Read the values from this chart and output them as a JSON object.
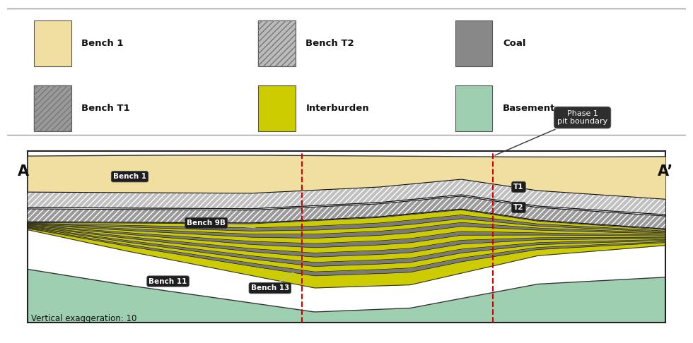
{
  "fig_width": 9.8,
  "fig_height": 4.86,
  "bg_color": "#ffffff",
  "colors": {
    "bench1": "#f0dfa0",
    "bench_t1_fill": "#999999",
    "bench_t2_fill": "#bbbbbb",
    "coal": "#7a7a7a",
    "interburden": "#cccc00",
    "basement": "#9ecfb0",
    "outline": "#222222"
  },
  "legend_items": [
    {
      "label": "Bench 1",
      "color": "#f0dfa0",
      "hatch": "",
      "row": 0,
      "col": 0
    },
    {
      "label": "Bench T2",
      "color": "#bbbbbb",
      "hatch": "////",
      "row": 0,
      "col": 1
    },
    {
      "label": "Coal",
      "color": "#888888",
      "hatch": "",
      "row": 0,
      "col": 2
    },
    {
      "label": "Bench T1",
      "color": "#999999",
      "hatch": "////",
      "row": 1,
      "col": 0
    },
    {
      "label": "Interburden",
      "color": "#cccc00",
      "hatch": "",
      "row": 1,
      "col": 1
    },
    {
      "label": "Basement",
      "color": "#9ecfb0",
      "hatch": "",
      "row": 1,
      "col": 2
    }
  ],
  "label_A": "A",
  "label_Aprime": "A’",
  "annotation_phase1": "Phase 1\npit boundary",
  "label_bench1": "Bench 1",
  "label_T1": "T1",
  "label_T2": "T2",
  "label_bench9B": "Bench 9B",
  "label_bench11": "Bench 11",
  "label_bench13": "Bench 13",
  "label_vert_exag": "Vertical exaggeration: 10"
}
